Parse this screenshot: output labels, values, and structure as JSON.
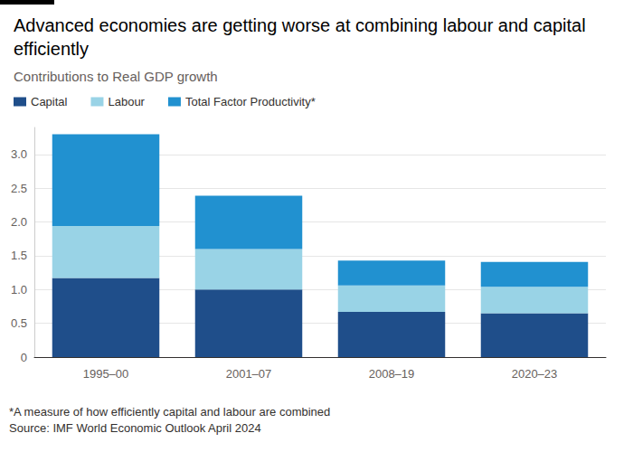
{
  "chart_data": {
    "type": "bar",
    "stacked": true,
    "title": "Advanced economies are getting worse at combining labour and capital efficiently",
    "subtitle": "Contributions to Real GDP growth",
    "footnote": "*A measure of how efficiently capital and labour are combined",
    "source": "Source: IMF World Economic Outlook April 2024",
    "categories": [
      "1995–00",
      "2001–07",
      "2008–19",
      "2020–23"
    ],
    "series": [
      {
        "name": "Capital",
        "color": "#1f4e8a",
        "values": [
          1.17,
          1.0,
          0.67,
          0.65
        ]
      },
      {
        "name": "Labour",
        "color": "#99d3e6",
        "values": [
          0.77,
          0.6,
          0.39,
          0.39
        ]
      },
      {
        "name": "Total Factor Productivity*",
        "color": "#2191d0",
        "values": [
          1.36,
          0.79,
          0.37,
          0.37
        ]
      }
    ],
    "ylim": [
      0,
      3.4
    ],
    "yticks": [
      0,
      0.5,
      {
        "value": 1,
        "label": "1.0"
      },
      1.5,
      {
        "value": 2,
        "label": "2.0"
      },
      2.5,
      {
        "value": 3,
        "label": "3.0"
      }
    ],
    "grid": true,
    "legend": "top-left"
  }
}
